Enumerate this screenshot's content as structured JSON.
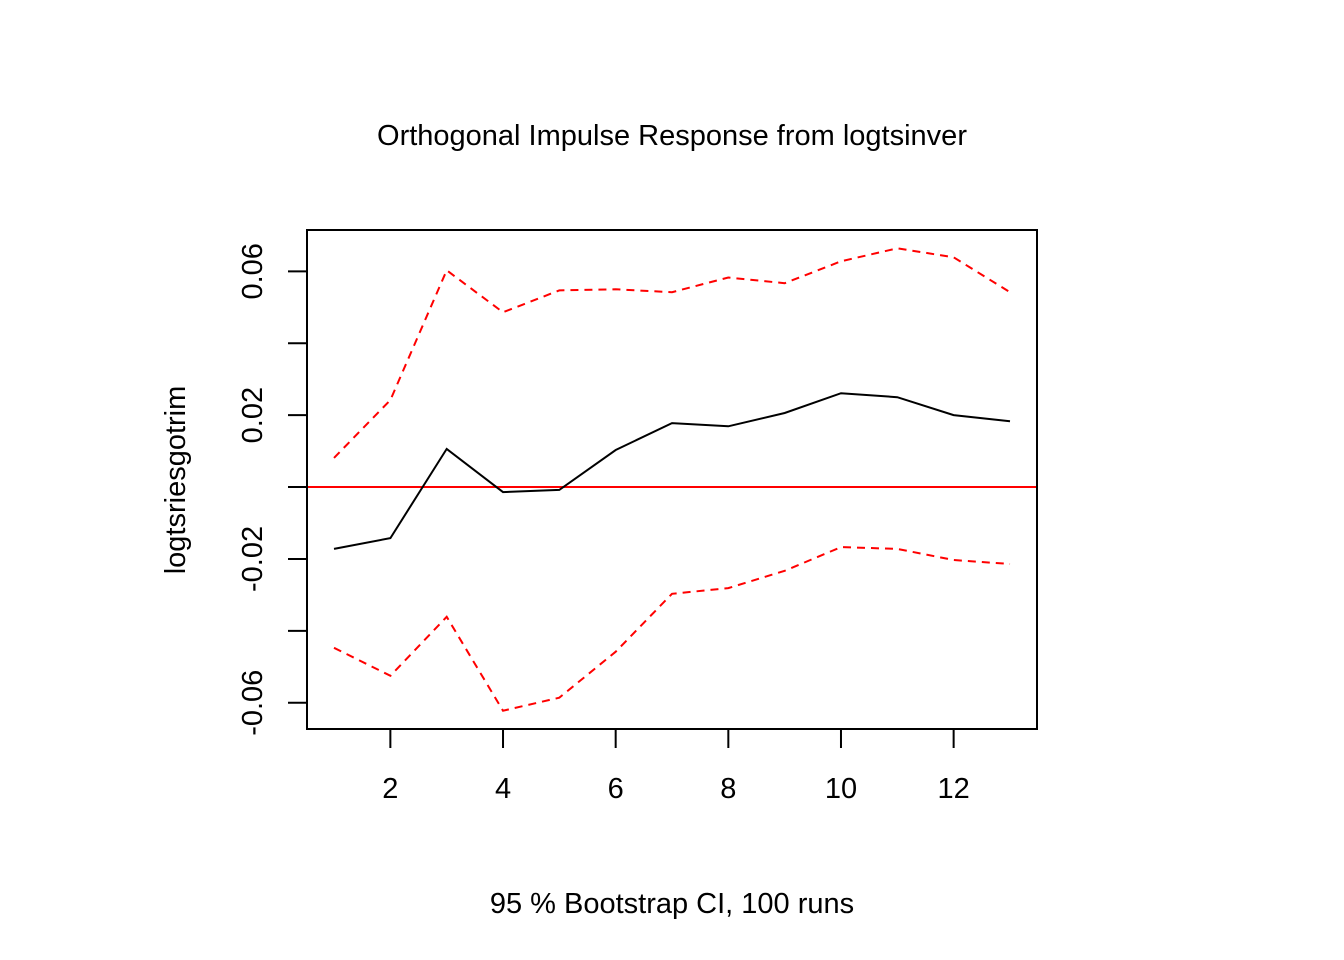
{
  "chart_data": {
    "type": "line",
    "title": "Orthogonal Impulse Response from logtsinver",
    "xlabel": "95 % Bootstrap CI,  100 runs",
    "ylabel": "logtsriesgotrim",
    "xlim": [
      0.52,
      13.48
    ],
    "ylim": [
      -0.0673,
      0.0715
    ],
    "x_ticks": [
      2,
      4,
      6,
      8,
      10,
      12
    ],
    "x_tick_labels": [
      "2",
      "4",
      "6",
      "8",
      "10",
      "12"
    ],
    "y_ticks": [
      0.06,
      0.04,
      0.02,
      0,
      -0.02,
      -0.04,
      -0.06
    ],
    "y_tick_labels": [
      "0.06",
      "",
      "0.02",
      "",
      "-0.02",
      "",
      "-0.06"
    ],
    "reference_line": {
      "y": 0,
      "color": "#ff0000"
    },
    "x": [
      1,
      2,
      3,
      4,
      5,
      6,
      7,
      8,
      9,
      10,
      11,
      12,
      13
    ],
    "series": [
      {
        "name": "logtsriesgotrim",
        "color": "#000000",
        "style": "solid",
        "values": [
          -0.0172,
          -0.0142,
          0.0106,
          -0.0014,
          -0.0008,
          0.0103,
          0.0178,
          0.0169,
          0.0206,
          0.0261,
          0.025,
          0.02,
          0.0183
        ]
      },
      {
        "name": "Upper",
        "color": "#ff0000",
        "style": "dashed",
        "values": [
          0.0081,
          0.0242,
          0.0603,
          0.0486,
          0.0547,
          0.055,
          0.0542,
          0.0583,
          0.0567,
          0.0628,
          0.0664,
          0.0639,
          0.0542
        ]
      },
      {
        "name": "Lower",
        "color": "#ff0000",
        "style": "dashed",
        "values": [
          -0.0447,
          -0.0525,
          -0.0361,
          -0.0622,
          -0.0586,
          -0.0458,
          -0.0297,
          -0.0281,
          -0.0233,
          -0.0167,
          -0.0172,
          -0.0203,
          -0.0214
        ]
      }
    ]
  }
}
